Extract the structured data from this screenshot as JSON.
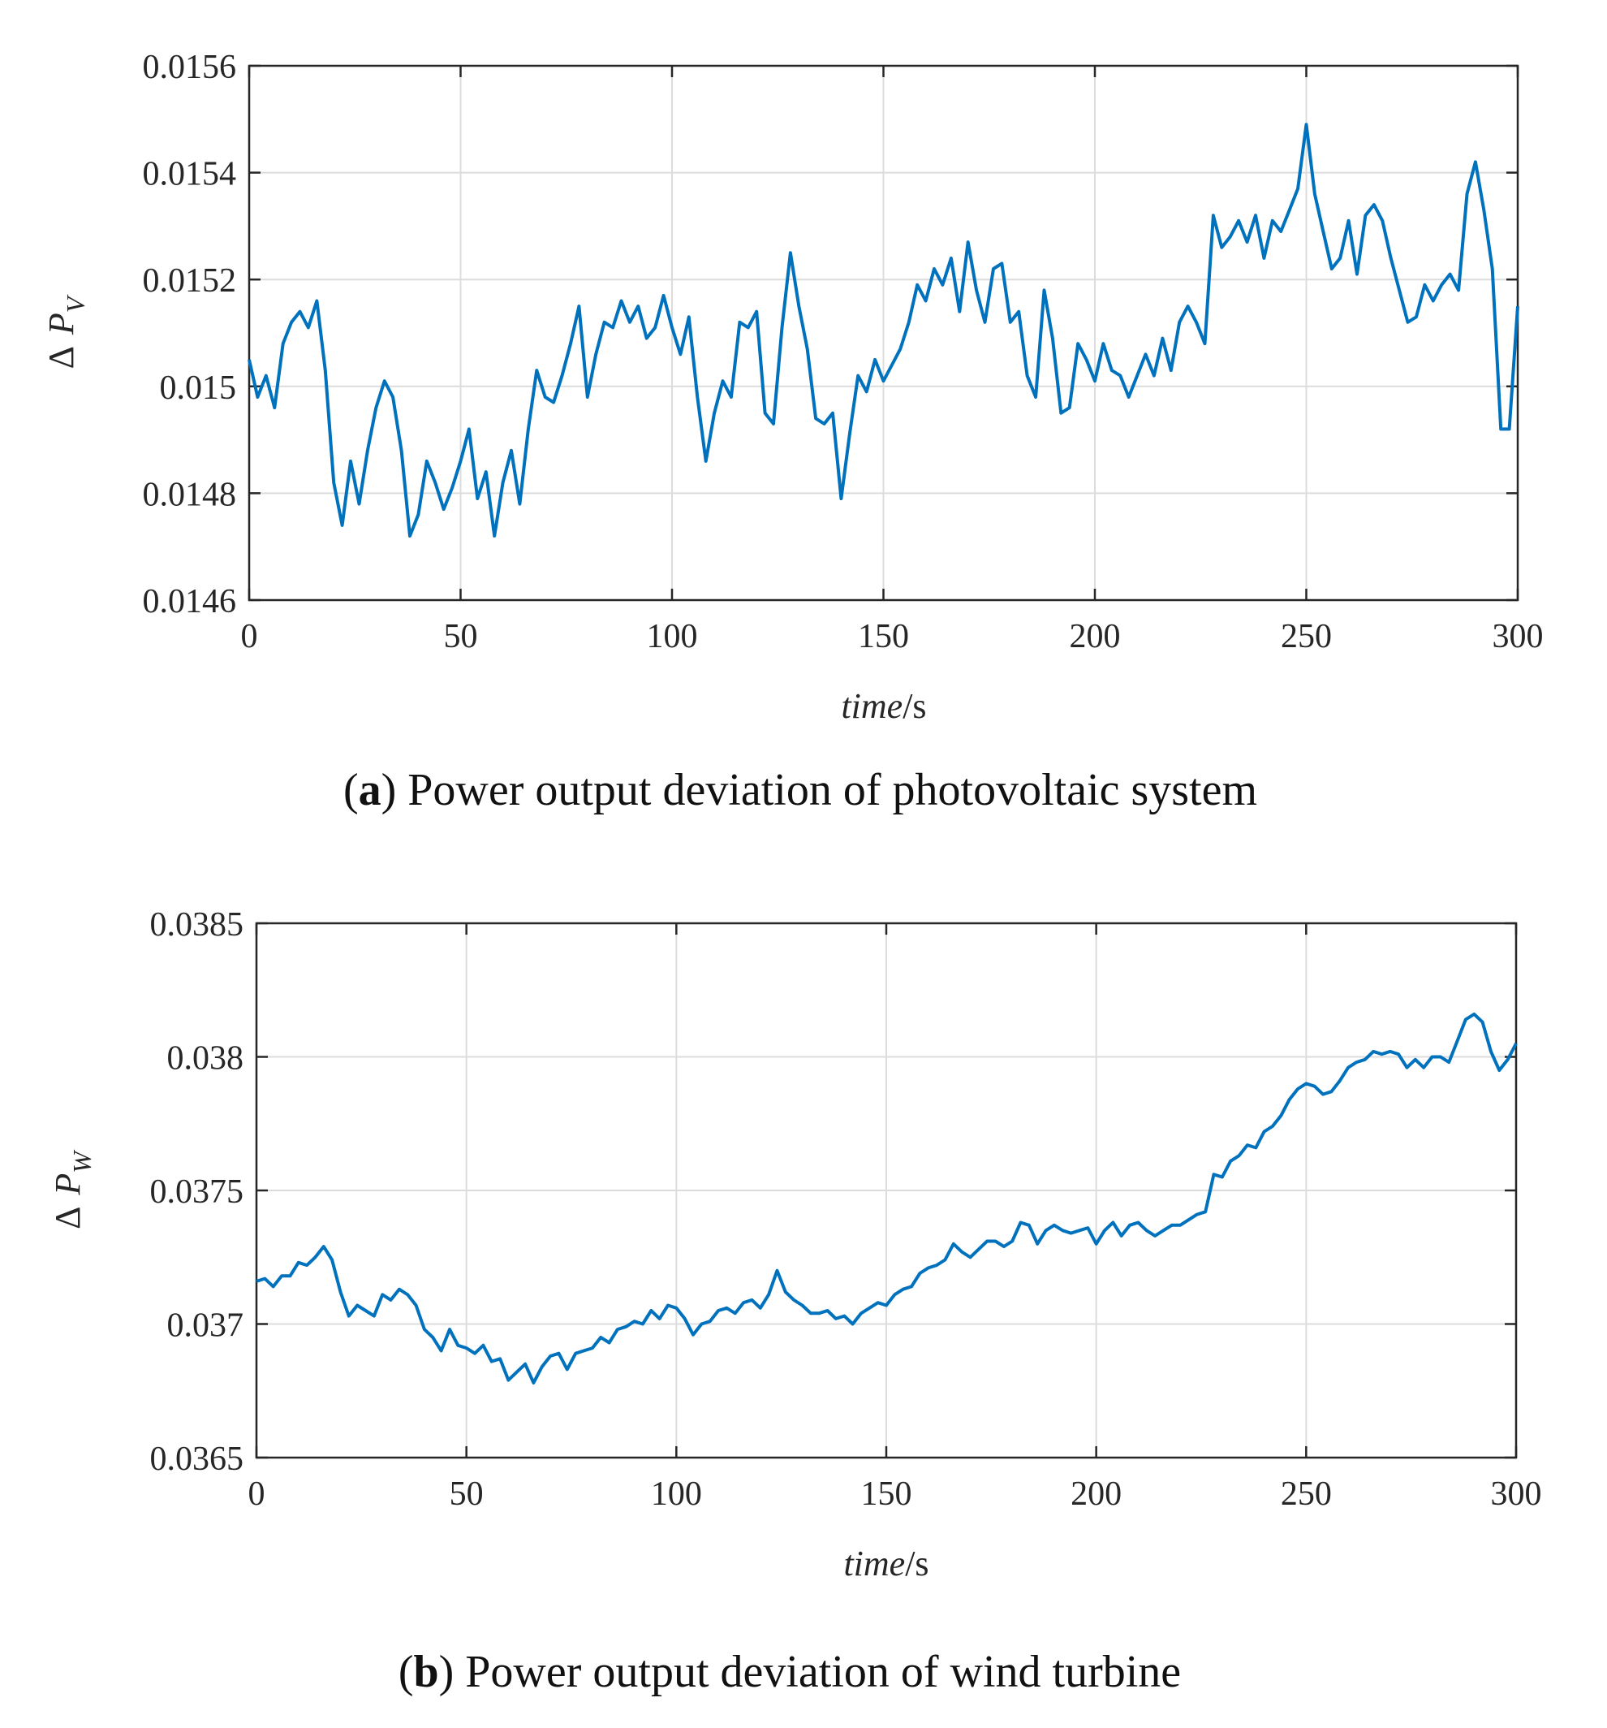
{
  "colors": {
    "line": "#0072BD",
    "axis": "#262626",
    "grid": "#dcdcdc",
    "background": "#ffffff"
  },
  "chart_data": [
    {
      "type": "line",
      "panel_id": "a",
      "caption_letter": "a",
      "caption_rest": ") Power output deviation of photovoltaic system",
      "xlabel_italic": "time",
      "xlabel_unit": "/s",
      "ylabel_delta": "Δ",
      "ylabel_symbol": "P",
      "ylabel_subscript": "V",
      "xlim": [
        0,
        300
      ],
      "ylim": [
        0.0146,
        0.0156
      ],
      "xticks": [
        0,
        50,
        100,
        150,
        200,
        250,
        300
      ],
      "xtick_labels": [
        "0",
        "50",
        "100",
        "150",
        "200",
        "250",
        "300"
      ],
      "yticks": [
        0.0146,
        0.0148,
        0.015,
        0.0152,
        0.0154,
        0.0156
      ],
      "ytick_labels": [
        "0.0146",
        "0.0148",
        "0.015",
        "0.0152",
        "0.0154",
        "0.0156"
      ],
      "grid": true,
      "series": [
        {
          "name": "ΔPV",
          "x": [
            0,
            2,
            4,
            6,
            8,
            10,
            12,
            14,
            16,
            18,
            20,
            22,
            24,
            26,
            28,
            30,
            32,
            34,
            36,
            38,
            40,
            42,
            44,
            46,
            48,
            50,
            52,
            54,
            56,
            58,
            60,
            62,
            64,
            66,
            68,
            70,
            72,
            74,
            76,
            78,
            80,
            82,
            84,
            86,
            88,
            90,
            92,
            94,
            96,
            98,
            100,
            102,
            104,
            106,
            108,
            110,
            112,
            114,
            116,
            118,
            120,
            122,
            124,
            126,
            128,
            130,
            132,
            134,
            136,
            138,
            140,
            142,
            144,
            146,
            148,
            150,
            152,
            154,
            156,
            158,
            160,
            162,
            164,
            166,
            168,
            170,
            172,
            174,
            176,
            178,
            180,
            182,
            184,
            186,
            188,
            190,
            192,
            194,
            196,
            198,
            200,
            202,
            204,
            206,
            208,
            210,
            212,
            214,
            216,
            218,
            220,
            222,
            224,
            226,
            228,
            230,
            232,
            234,
            236,
            238,
            240,
            242,
            244,
            246,
            248,
            250,
            252,
            254,
            256,
            258,
            260,
            262,
            264,
            266,
            268,
            270,
            272,
            274,
            276,
            278,
            280,
            282,
            284,
            286,
            288,
            290,
            292,
            294,
            296,
            298,
            300
          ],
          "y": [
            0.01505,
            0.01498,
            0.01502,
            0.01496,
            0.01508,
            0.01512,
            0.01514,
            0.01511,
            0.01516,
            0.01503,
            0.01482,
            0.01474,
            0.01486,
            0.01478,
            0.01488,
            0.01496,
            0.01501,
            0.01498,
            0.01488,
            0.01472,
            0.01476,
            0.01486,
            0.01482,
            0.01477,
            0.01481,
            0.01486,
            0.01492,
            0.01479,
            0.01484,
            0.01472,
            0.01482,
            0.01488,
            0.01478,
            0.01492,
            0.01503,
            0.01498,
            0.01497,
            0.01502,
            0.01508,
            0.01515,
            0.01498,
            0.01506,
            0.01512,
            0.01511,
            0.01516,
            0.01512,
            0.01515,
            0.01509,
            0.01511,
            0.01517,
            0.01511,
            0.01506,
            0.01513,
            0.01498,
            0.01486,
            0.01495,
            0.01501,
            0.01498,
            0.01512,
            0.01511,
            0.01514,
            0.01495,
            0.01493,
            0.01511,
            0.01525,
            0.01515,
            0.01507,
            0.01494,
            0.01493,
            0.01495,
            0.01479,
            0.01491,
            0.01502,
            0.01499,
            0.01505,
            0.01501,
            0.01504,
            0.01507,
            0.01512,
            0.01519,
            0.01516,
            0.01522,
            0.01519,
            0.01524,
            0.01514,
            0.01527,
            0.01518,
            0.01512,
            0.01522,
            0.01523,
            0.01512,
            0.01514,
            0.01502,
            0.01498,
            0.01518,
            0.01509,
            0.01495,
            0.01496,
            0.01508,
            0.01505,
            0.01501,
            0.01508,
            0.01503,
            0.01502,
            0.01498,
            0.01502,
            0.01506,
            0.01502,
            0.01509,
            0.01503,
            0.01512,
            0.01515,
            0.01512,
            0.01508,
            0.01532,
            0.01526,
            0.01528,
            0.01531,
            0.01527,
            0.01532,
            0.01524,
            0.01531,
            0.01529,
            0.01533,
            0.01537,
            0.01549,
            0.01536,
            0.01529,
            0.01522,
            0.01524,
            0.01531,
            0.01521,
            0.01532,
            0.01534,
            0.01531,
            0.01524,
            0.01518,
            0.01512,
            0.01513,
            0.01519,
            0.01516,
            0.01519,
            0.01521,
            0.01518,
            0.01536,
            0.01542,
            0.01533,
            0.01522,
            0.01492,
            0.01492,
            0.01515
          ]
        }
      ]
    },
    {
      "type": "line",
      "panel_id": "b",
      "caption_letter": "b",
      "caption_rest": ") Power output deviation of wind turbine",
      "xlabel_italic": "time",
      "xlabel_unit": "/s",
      "ylabel_delta": "Δ",
      "ylabel_symbol": "P",
      "ylabel_subscript": "W",
      "xlim": [
        0,
        300
      ],
      "ylim": [
        0.0365,
        0.0385
      ],
      "xticks": [
        0,
        50,
        100,
        150,
        200,
        250,
        300
      ],
      "xtick_labels": [
        "0",
        "50",
        "100",
        "150",
        "200",
        "250",
        "300"
      ],
      "yticks": [
        0.0365,
        0.037,
        0.0375,
        0.038,
        0.0385
      ],
      "ytick_labels": [
        "0.0365",
        "0.037",
        "0.0375",
        "0.038",
        "0.0385"
      ],
      "grid": true,
      "series": [
        {
          "name": "ΔPW",
          "x": [
            0,
            2,
            4,
            6,
            8,
            10,
            12,
            14,
            16,
            18,
            20,
            22,
            24,
            26,
            28,
            30,
            32,
            34,
            36,
            38,
            40,
            42,
            44,
            46,
            48,
            50,
            52,
            54,
            56,
            58,
            60,
            62,
            64,
            66,
            68,
            70,
            72,
            74,
            76,
            78,
            80,
            82,
            84,
            86,
            88,
            90,
            92,
            94,
            96,
            98,
            100,
            102,
            104,
            106,
            108,
            110,
            112,
            114,
            116,
            118,
            120,
            122,
            124,
            126,
            128,
            130,
            132,
            134,
            136,
            138,
            140,
            142,
            144,
            146,
            148,
            150,
            152,
            154,
            156,
            158,
            160,
            162,
            164,
            166,
            168,
            170,
            172,
            174,
            176,
            178,
            180,
            182,
            184,
            186,
            188,
            190,
            192,
            194,
            196,
            198,
            200,
            202,
            204,
            206,
            208,
            210,
            212,
            214,
            216,
            218,
            220,
            222,
            224,
            226,
            228,
            230,
            232,
            234,
            236,
            238,
            240,
            242,
            244,
            246,
            248,
            250,
            252,
            254,
            256,
            258,
            260,
            262,
            264,
            266,
            268,
            270,
            272,
            274,
            276,
            278,
            280,
            282,
            284,
            286,
            288,
            290,
            292,
            294,
            296,
            298,
            300
          ],
          "y": [
            0.03716,
            0.03717,
            0.03714,
            0.03718,
            0.03718,
            0.03723,
            0.03722,
            0.03725,
            0.03729,
            0.03724,
            0.03712,
            0.03703,
            0.03707,
            0.03705,
            0.03703,
            0.03711,
            0.03709,
            0.03713,
            0.03711,
            0.03707,
            0.03698,
            0.03695,
            0.0369,
            0.03698,
            0.03692,
            0.03691,
            0.03689,
            0.03692,
            0.03686,
            0.03687,
            0.03679,
            0.03682,
            0.03685,
            0.03678,
            0.03684,
            0.03688,
            0.03689,
            0.03683,
            0.03689,
            0.0369,
            0.03691,
            0.03695,
            0.03693,
            0.03698,
            0.03699,
            0.03701,
            0.037,
            0.03705,
            0.03702,
            0.03707,
            0.03706,
            0.03702,
            0.03696,
            0.037,
            0.03701,
            0.03705,
            0.03706,
            0.03704,
            0.03708,
            0.03709,
            0.03706,
            0.03711,
            0.0372,
            0.03712,
            0.03709,
            0.03707,
            0.03704,
            0.03704,
            0.03705,
            0.03702,
            0.03703,
            0.037,
            0.03704,
            0.03706,
            0.03708,
            0.03707,
            0.03711,
            0.03713,
            0.03714,
            0.03719,
            0.03721,
            0.03722,
            0.03724,
            0.0373,
            0.03727,
            0.03725,
            0.03728,
            0.03731,
            0.03731,
            0.03729,
            0.03731,
            0.03738,
            0.03737,
            0.0373,
            0.03735,
            0.03737,
            0.03735,
            0.03734,
            0.03735,
            0.03736,
            0.0373,
            0.03735,
            0.03738,
            0.03733,
            0.03737,
            0.03738,
            0.03735,
            0.03733,
            0.03735,
            0.03737,
            0.03737,
            0.03739,
            0.03741,
            0.03742,
            0.03756,
            0.03755,
            0.03761,
            0.03763,
            0.03767,
            0.03766,
            0.03772,
            0.03774,
            0.03778,
            0.03784,
            0.03788,
            0.0379,
            0.03789,
            0.03786,
            0.03787,
            0.03791,
            0.03796,
            0.03798,
            0.03799,
            0.03802,
            0.03801,
            0.03802,
            0.03801,
            0.03796,
            0.03799,
            0.03796,
            0.038,
            0.038,
            0.03798,
            0.03806,
            0.03814,
            0.03816,
            0.03813,
            0.03802,
            0.03795,
            0.03799,
            0.03805
          ]
        }
      ]
    }
  ]
}
